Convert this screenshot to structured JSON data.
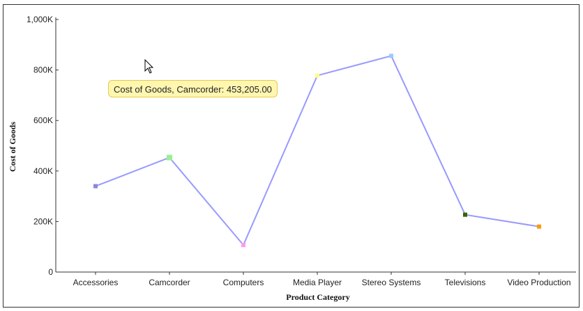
{
  "chart_data": {
    "type": "line",
    "xlabel": "Product Category",
    "ylabel": "Cost of Goods",
    "ylim": [
      0,
      1000000
    ],
    "yticks": [
      {
        "value": 0,
        "label": "0"
      },
      {
        "value": 200000,
        "label": "200K"
      },
      {
        "value": 400000,
        "label": "400K"
      },
      {
        "value": 600000,
        "label": "600K"
      },
      {
        "value": 800000,
        "label": "800K"
      },
      {
        "value": 1000000,
        "label": "1,000K"
      }
    ],
    "categories": [
      "Accessories",
      "Camcorder",
      "Computers",
      "Media Player",
      "Stereo Systems",
      "Televisions",
      "Video Production"
    ],
    "series": [
      {
        "values": [
          340000,
          453205,
          107000,
          778000,
          856000,
          227000,
          180000
        ],
        "line_color": "#9999ff",
        "marker_colors": [
          "#8888dd",
          "#99ee99",
          "#ff99ee",
          "#ffff88",
          "#99ccff",
          "#336600",
          "#ff9900"
        ]
      }
    ],
    "highlighted_index": 1,
    "grid": false,
    "legend": "none"
  },
  "tooltip": {
    "text": "Cost of Goods, Camcorder: 453,205.00"
  }
}
